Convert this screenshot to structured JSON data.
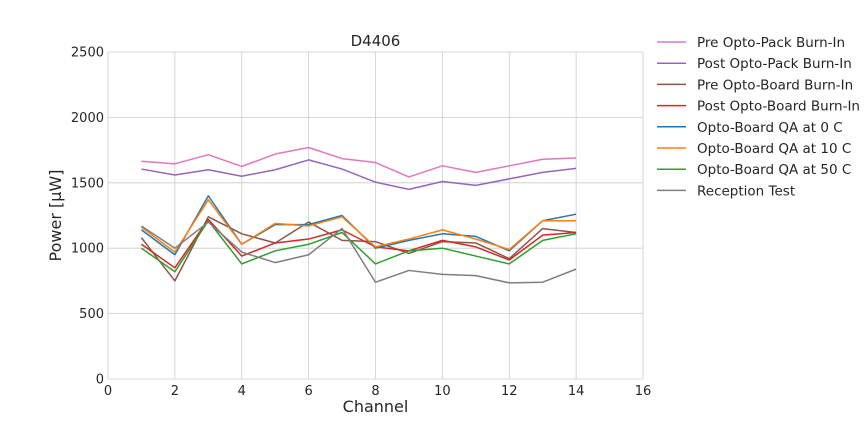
{
  "chart_data": {
    "type": "line",
    "title": "D4406",
    "xlabel": "Channel",
    "ylabel": "Power [μW]",
    "xlim": [
      0,
      16
    ],
    "ylim": [
      0,
      2500
    ],
    "xticks": [
      0,
      2,
      4,
      6,
      8,
      10,
      12,
      14,
      16
    ],
    "yticks": [
      0,
      500,
      1000,
      1500,
      2000,
      2500
    ],
    "grid": true,
    "legend_position": "outside-top-right",
    "x": [
      1,
      2,
      3,
      4,
      5,
      6,
      7,
      8,
      9,
      10,
      11,
      12,
      13,
      14
    ],
    "series": [
      {
        "name": "Pre Opto-Pack Burn-In",
        "color": "#e377c2",
        "values": [
          1665,
          1645,
          1715,
          1625,
          1720,
          1770,
          1685,
          1655,
          1545,
          1630,
          1580,
          1630,
          1680,
          1690
        ]
      },
      {
        "name": "Post Opto-Pack Burn-In",
        "color": "#9467bd",
        "values": [
          1605,
          1560,
          1600,
          1550,
          1600,
          1675,
          1605,
          1505,
          1450,
          1510,
          1480,
          1530,
          1580,
          1610
        ]
      },
      {
        "name": "Pre Opto-Board Burn-In",
        "color": "#8c564b",
        "values": [
          1080,
          750,
          1240,
          1110,
          1040,
          1200,
          1060,
          1050,
          960,
          1050,
          1040,
          920,
          1150,
          1120
        ]
      },
      {
        "name": "Post Opto-Board Burn-In",
        "color": "#d62728",
        "values": [
          1030,
          850,
          1220,
          940,
          1040,
          1070,
          1140,
          1010,
          980,
          1060,
          1010,
          910,
          1100,
          1120
        ]
      },
      {
        "name": "Opto-Board QA at 0 C",
        "color": "#1f77b4",
        "values": [
          1140,
          950,
          1400,
          1030,
          1180,
          1180,
          1250,
          1000,
          1060,
          1110,
          1090,
          980,
          1210,
          1260
        ]
      },
      {
        "name": "Opto-Board QA at 10 C",
        "color": "#ff7f0e",
        "values": [
          1160,
          970,
          1370,
          1030,
          1190,
          1170,
          1240,
          1010,
          1070,
          1140,
          1070,
          990,
          1210,
          1210
        ]
      },
      {
        "name": "Opto-Board QA at 50 C",
        "color": "#2ca02c",
        "values": [
          1000,
          820,
          1210,
          880,
          980,
          1030,
          1120,
          880,
          980,
          1000,
          940,
          880,
          1060,
          1110
        ]
      },
      {
        "name": "Reception Test",
        "color": "#7f7f7f",
        "values": [
          1170,
          1000,
          1200,
          970,
          890,
          950,
          1150,
          740,
          830,
          800,
          790,
          735,
          740,
          840
        ]
      }
    ]
  }
}
